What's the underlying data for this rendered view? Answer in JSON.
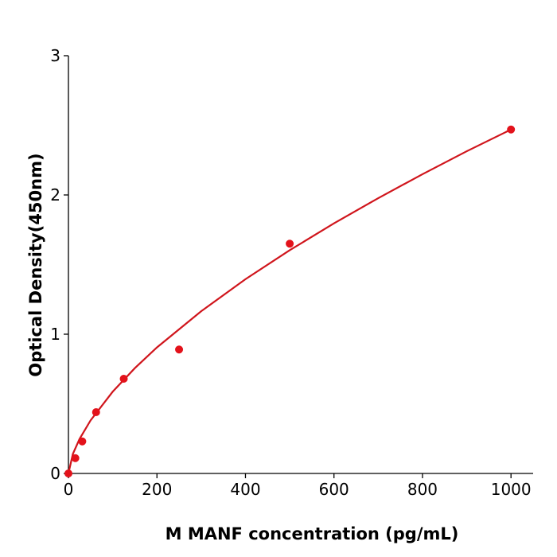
{
  "chart_data": {
    "type": "scatter",
    "xlabel": "M  MANF concentration (pg/mL)",
    "ylabel": "Optical Density(450nm)",
    "points": {
      "color": "#e3121b",
      "x": [
        0,
        15.6,
        31.25,
        62.5,
        125,
        250,
        500,
        1000
      ],
      "values": [
        0,
        0.11,
        0.23,
        0.44,
        0.68,
        0.89,
        1.65,
        2.47
      ]
    },
    "fit": {
      "color": "#d0151c",
      "x": [
        0,
        10,
        25,
        50,
        100,
        150,
        200,
        300,
        400,
        500,
        600,
        700,
        800,
        900,
        1000
      ],
      "values": [
        0,
        0.14,
        0.247,
        0.381,
        0.587,
        0.756,
        0.905,
        1.165,
        1.395,
        1.603,
        1.796,
        1.977,
        2.149,
        2.314,
        2.47
      ]
    },
    "xlim": [
      0,
      1050
    ],
    "xticks": [
      0,
      200,
      400,
      600,
      800,
      1000
    ],
    "ylim": [
      0,
      3
    ],
    "yticks": [
      0,
      1,
      2,
      3
    ]
  }
}
